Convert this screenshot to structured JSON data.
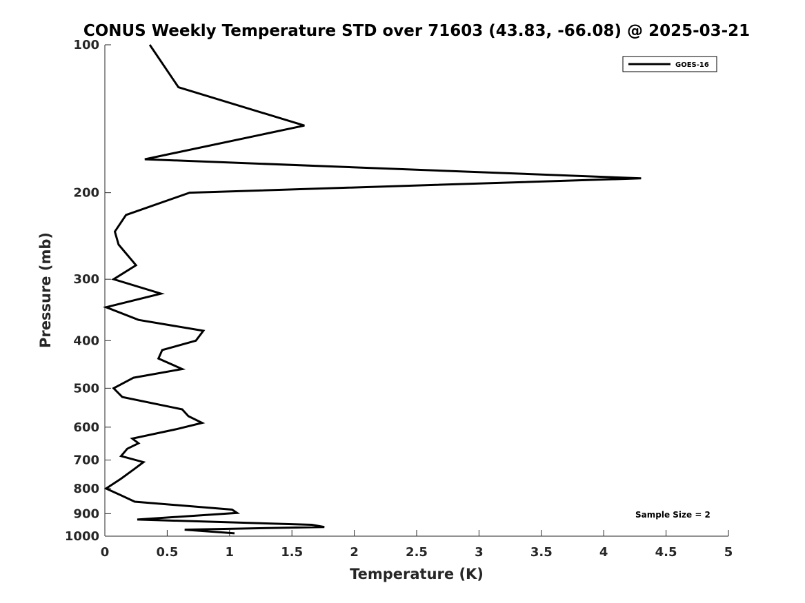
{
  "chart_data": {
    "type": "line",
    "title": "CONUS Weekly Temperature STD over 71603 (43.83, -66.08) @ 2025-03-21",
    "xlabel": "Temperature (K)",
    "ylabel": "Pressure (mb)",
    "xlim": [
      0,
      5
    ],
    "ylim": [
      100,
      1000
    ],
    "yscale": "log",
    "y_reversed": true,
    "grid": false,
    "legend_position": "top-right",
    "x_ticks": [
      0,
      0.5,
      1,
      1.5,
      2,
      2.5,
      3,
      3.5,
      4,
      4.5,
      5
    ],
    "x_tick_labels": [
      "0",
      "0.5",
      "1",
      "1.5",
      "2",
      "2.5",
      "3",
      "3.5",
      "4",
      "4.5",
      "5"
    ],
    "y_ticks": [
      100,
      200,
      300,
      400,
      500,
      600,
      700,
      800,
      900,
      1000
    ],
    "y_tick_labels": [
      "100",
      "200",
      "300",
      "400",
      "500",
      "600",
      "700",
      "800",
      "900",
      "1000"
    ],
    "series": [
      {
        "name": "GOES-16",
        "color": "#000000",
        "x": [
          0.36,
          0.59,
          1.6,
          0.32,
          4.3,
          0.68,
          0.17,
          0.08,
          0.11,
          0.25,
          0.07,
          0.45,
          0.01,
          0.27,
          0.79,
          0.73,
          0.46,
          0.43,
          0.62,
          0.23,
          0.07,
          0.14,
          0.62,
          0.67,
          0.78,
          0.57,
          0.22,
          0.27,
          0.18,
          0.13,
          0.31,
          0.24,
          0.13,
          0.01,
          0.13,
          0.24,
          1.02,
          1.06,
          0.26,
          1.66,
          1.76,
          0.64,
          1.04
        ],
        "y": [
          100,
          122,
          146,
          171,
          187,
          200,
          222,
          240,
          255,
          281,
          300,
          321,
          342,
          363,
          382,
          400,
          418,
          435,
          457,
          476,
          500,
          521,
          552,
          570,
          588,
          606,
          633,
          647,
          664,
          687,
          707,
          729,
          764,
          800,
          826,
          851,
          883,
          897,
          925,
          948,
          958,
          970,
          987
        ]
      }
    ],
    "legend": [
      "GOES-16"
    ],
    "annotations": [
      "Sample Size = 2"
    ]
  }
}
